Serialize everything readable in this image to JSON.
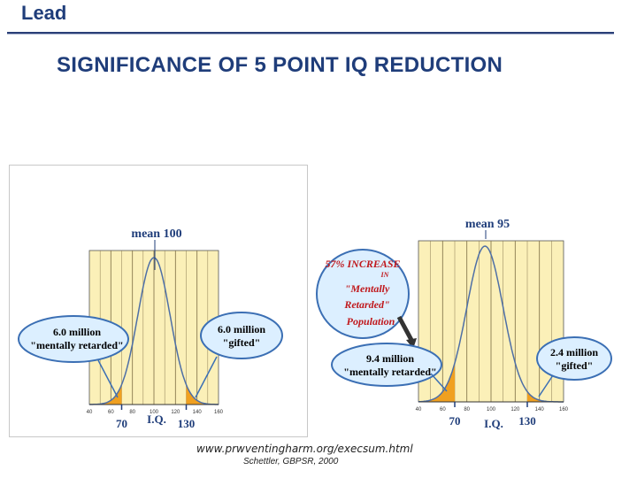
{
  "header": {
    "title": "Lead"
  },
  "slide": {
    "title": "SIGNIFICANCE OF 5 POINT IQ REDUCTION"
  },
  "footer": {
    "url": "www.prwventingharm.org/execsum.html",
    "credit": "Schettler, GBPSR, 2000"
  },
  "colors": {
    "plot_bg": "#fbf0b8",
    "curve": "#4e6fa6",
    "tail_fill": "#f0a020",
    "callout_fill": "#dcefff",
    "callout_stroke": "#3b6fb4",
    "label_text": "#1f3d7a",
    "increase_text": "#c0181c"
  },
  "chart_data": [
    {
      "type": "area",
      "title": "",
      "xlabel": "I.Q.",
      "ylabel": "",
      "xlim": [
        40,
        160
      ],
      "x_ticks": [
        40,
        60,
        80,
        100,
        120,
        140,
        160
      ],
      "x_tick_labels": [
        "40",
        "60",
        "80",
        "100",
        "120",
        "140",
        "160"
      ],
      "highlighted_ticks": [
        "70",
        "130"
      ],
      "grid": true,
      "distribution": {
        "kind": "normal",
        "mean": 100,
        "sd": 15
      },
      "shaded_regions": [
        {
          "from": 40,
          "to": 70,
          "label": "6.0 million\n\"mentally retarded\"",
          "value_millions": 6.0
        },
        {
          "from": 130,
          "to": 160,
          "label": "6.0 million\n\"gifted\"",
          "value_millions": 6.0
        }
      ],
      "annotations": [
        "mean 100",
        "6.0 million",
        "\"mentally retarded\"",
        "6.0 million",
        "\"gifted\""
      ]
    },
    {
      "type": "area",
      "title": "",
      "xlabel": "I.Q.",
      "ylabel": "",
      "xlim": [
        40,
        160
      ],
      "x_ticks": [
        40,
        60,
        80,
        100,
        120,
        140,
        160
      ],
      "x_tick_labels": [
        "40",
        "60",
        "80",
        "100",
        "120",
        "140",
        "160"
      ],
      "highlighted_ticks": [
        "70",
        "130"
      ],
      "grid": true,
      "distribution": {
        "kind": "normal",
        "mean": 95,
        "sd": 15
      },
      "shaded_regions": [
        {
          "from": 40,
          "to": 70,
          "label": "9.4 million\n\"mentally retarded\"",
          "value_millions": 9.4
        },
        {
          "from": 130,
          "to": 160,
          "label": "2.4 million\n\"gifted\"",
          "value_millions": 2.4
        }
      ],
      "annotations": [
        "mean 95",
        "57% INCREASE",
        "IN",
        "\"Mentally",
        "Retarded\"",
        "Population",
        "9.4 million",
        "\"mentally retarded\"",
        "2.4 million",
        "\"gifted\""
      ]
    }
  ]
}
